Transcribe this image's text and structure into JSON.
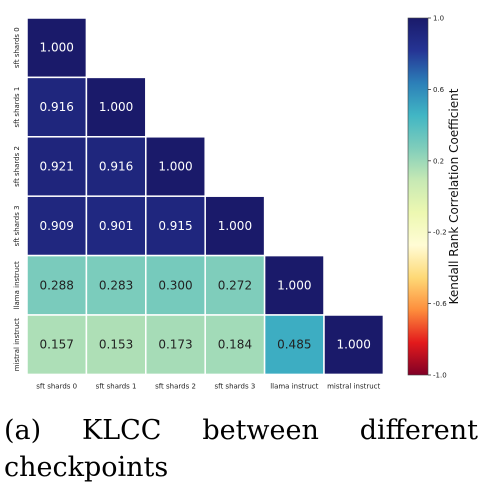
{
  "chart_data": {
    "type": "heatmap",
    "title": "",
    "row_labels": [
      "sft shards 0",
      "sft shards 1",
      "sft shards 2",
      "sft shards 3",
      "llama instruct",
      "mistral instruct"
    ],
    "col_labels": [
      "sft shards 0",
      "sft shards 1",
      "sft shards 2",
      "sft shards 3",
      "llama instruct",
      "mistral instruct"
    ],
    "values": [
      [
        1.0,
        null,
        null,
        null,
        null,
        null
      ],
      [
        0.916,
        1.0,
        null,
        null,
        null,
        null
      ],
      [
        0.921,
        0.916,
        1.0,
        null,
        null,
        null
      ],
      [
        0.909,
        0.901,
        0.915,
        1.0,
        null,
        null
      ],
      [
        0.288,
        0.283,
        0.3,
        0.272,
        1.0,
        null
      ],
      [
        0.157,
        0.153,
        0.173,
        0.184,
        0.485,
        1.0
      ]
    ],
    "value_labels": [
      [
        "1.000"
      ],
      [
        "0.916",
        "1.000"
      ],
      [
        "0.921",
        "0.916",
        "1.000"
      ],
      [
        "0.909",
        "0.901",
        "0.915",
        "1.000"
      ],
      [
        "0.288",
        "0.283",
        "0.300",
        "0.272",
        "1.000"
      ],
      [
        "0.157",
        "0.153",
        "0.173",
        "0.184",
        "0.485",
        "1.000"
      ]
    ],
    "mask": "upper-triangle",
    "colormap": "RdYlBu",
    "colorbar": {
      "label": "Kendall Rank Correlation Coefficient",
      "range": [
        -1.0,
        1.0
      ],
      "ticks": [
        1.0,
        0.6,
        0.2,
        -0.2,
        -0.6,
        -1.0
      ],
      "tick_labels": [
        "1.0",
        "0.6",
        "0.2",
        "-0.2",
        "-0.6",
        "-1.0"
      ],
      "colors": [
        "#1a1a6a",
        "#253494",
        "#2c7fb8",
        "#41b6c4",
        "#7fcdbb",
        "#c7e9b4",
        "#edf8b1",
        "#fffcd5",
        "#fed976",
        "#fd8d3c",
        "#e31a1c",
        "#800026"
      ]
    }
  },
  "caption": {
    "words": [
      "(a)",
      "KLCC",
      "between",
      "different"
    ],
    "line2": "checkpoints"
  }
}
